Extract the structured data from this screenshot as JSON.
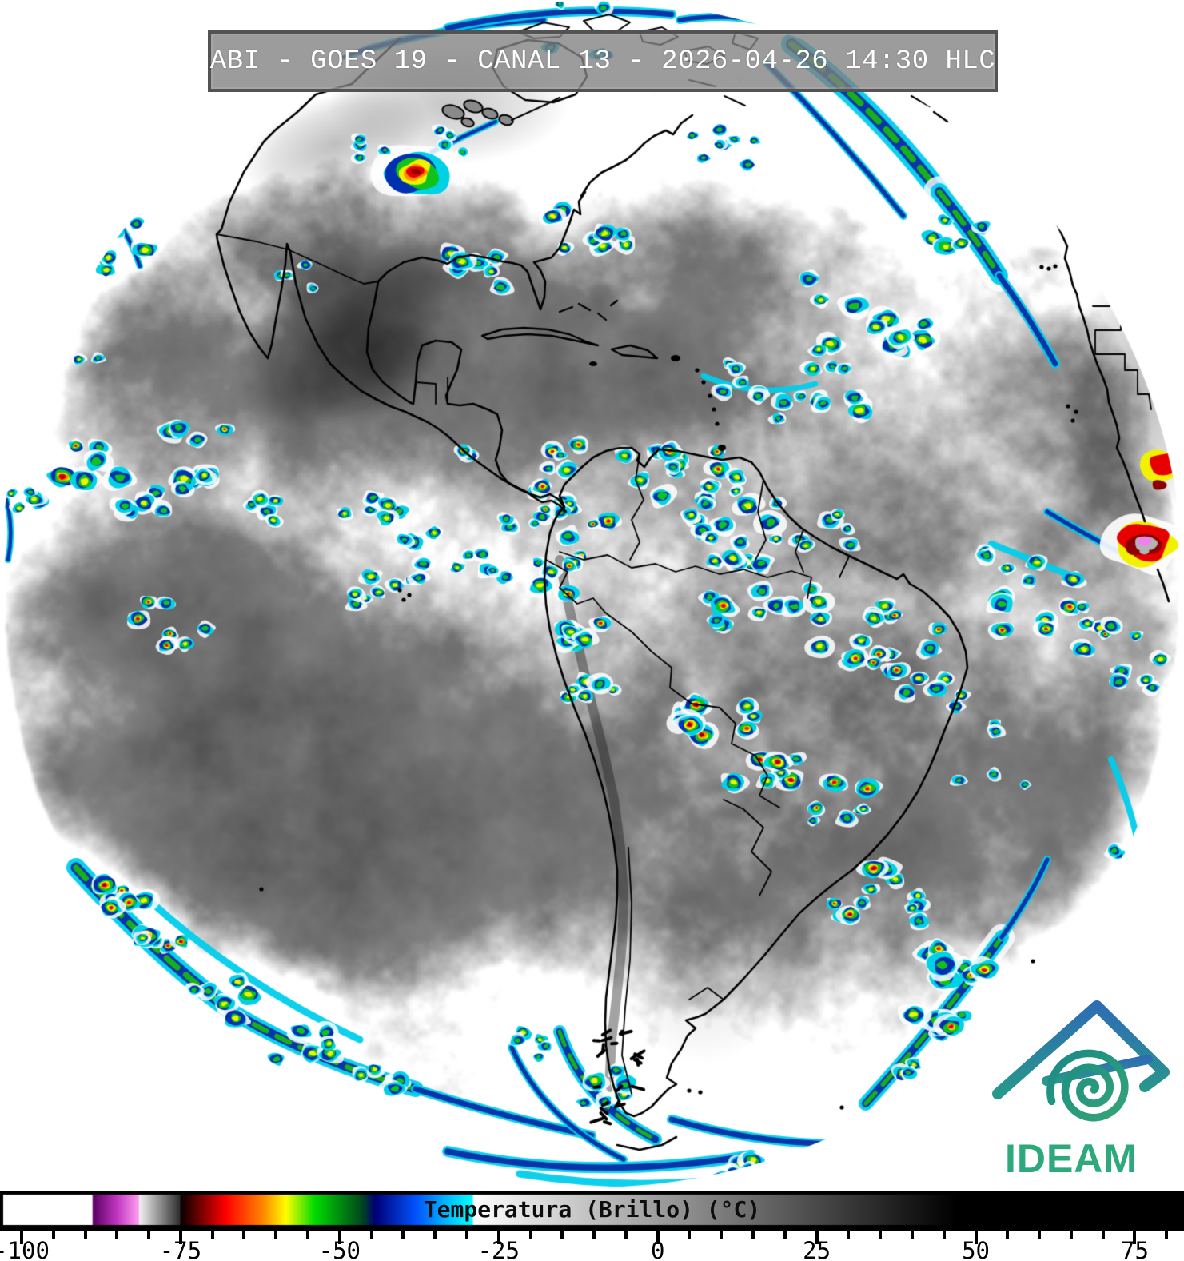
{
  "header": {
    "title": "ABI - GOES 19 - CANAL 13 - 2026-04-26 14:30 HLC",
    "instrument": "ABI",
    "satellite": "GOES 19",
    "channel": "CANAL 13",
    "datetime": "2026-04-26 14:30",
    "time_zone": "HLC"
  },
  "logo": {
    "text": "IDEAM",
    "roof_blue": "#2e6db4",
    "roof_teal": "#27988a",
    "spiral_teal": "#1b9186",
    "wordmark_green": "#2ea97c"
  },
  "colorbar": {
    "title": "Temperatura (Brillo) (°C)",
    "tick_labels": [
      "-100",
      "-75",
      "-50",
      "-25",
      "0",
      "25",
      "50",
      "75"
    ],
    "tick_values": [
      -100,
      -75,
      -50,
      -25,
      0,
      25,
      50,
      75
    ],
    "minor_tick_step": 5,
    "axis_min": -100,
    "axis_max": 80,
    "palette_stops": [
      [
        -120,
        "#ffffff"
      ],
      [
        -89,
        "#ffffff"
      ],
      [
        -88.8,
        "#5c0064"
      ],
      [
        -85,
        "#c238c2"
      ],
      [
        -81.7,
        "#ff9cf0"
      ],
      [
        -81.5,
        "#f0f0f0"
      ],
      [
        -75.2,
        "#303030"
      ],
      [
        -75,
        "#0a0000"
      ],
      [
        -68,
        "#ff0000"
      ],
      [
        -62,
        "#ff8a00"
      ],
      [
        -58.5,
        "#ffff00"
      ],
      [
        -54,
        "#00dc00"
      ],
      [
        -46.5,
        "#00461e"
      ],
      [
        -44.5,
        "#000078"
      ],
      [
        -38,
        "#0055ff"
      ],
      [
        -32,
        "#00d2ff"
      ],
      [
        -29.2,
        "#00ffff"
      ],
      [
        -29,
        "#ffffff"
      ],
      [
        47,
        "#000000"
      ],
      [
        85,
        "#000000"
      ]
    ]
  }
}
